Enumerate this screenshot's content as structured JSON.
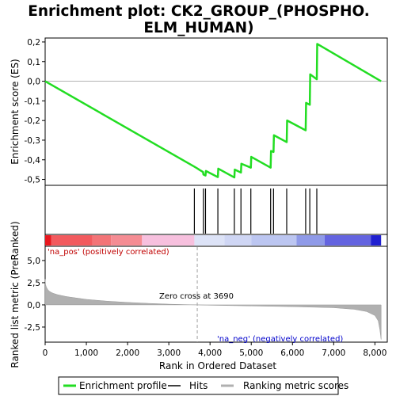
{
  "chart_data": {
    "type": "line",
    "title_lines": [
      "Enrichment plot: CK2_GROUP_(PHOSPHO.",
      "ELM_HUMAN)"
    ],
    "top_ylabel": "Enrichment score (ES)",
    "bottom_ylabel": "Ranked list metric (PreRanked)",
    "xlabel": "Rank in Ordered Dataset",
    "x_ticks": [
      "0",
      "1,000",
      "2,000",
      "3,000",
      "4,000",
      "5,000",
      "6,000",
      "7,000",
      "8,000"
    ],
    "x_tick_values": [
      0,
      1000,
      2000,
      3000,
      4000,
      5000,
      6000,
      7000,
      8000
    ],
    "xlim": [
      0,
      8300
    ],
    "es_yticks": [
      "0,2",
      "0,1",
      "0,0",
      "-0,1",
      "-0,2",
      "-0,3",
      "-0,4",
      "-0,5"
    ],
    "es_ytick_values": [
      0.2,
      0.1,
      0.0,
      -0.1,
      -0.2,
      -0.3,
      -0.4,
      -0.5
    ],
    "es_ylim": [
      -0.53,
      0.22
    ],
    "metric_yticks": [
      "5,0",
      "2,5",
      "0,0",
      "-2,5"
    ],
    "metric_ytick_values": [
      5.0,
      2.5,
      0.0,
      -2.5
    ],
    "metric_ylim": [
      -4.2,
      6.6
    ],
    "enrichment_profile": {
      "x": [
        0,
        3620,
        3700,
        3750,
        3830,
        3840,
        3890,
        3900,
        4190,
        4200,
        4590,
        4600,
        4750,
        4760,
        4990,
        5000,
        5470,
        5480,
        5540,
        5550,
        5860,
        5870,
        6320,
        6330,
        6420,
        6430,
        6590,
        6600,
        8150
      ],
      "y": [
        0.0,
        -0.435,
        -0.445,
        -0.452,
        -0.462,
        -0.475,
        -0.48,
        -0.457,
        -0.488,
        -0.445,
        -0.49,
        -0.45,
        -0.465,
        -0.42,
        -0.44,
        -0.385,
        -0.44,
        -0.355,
        -0.36,
        -0.275,
        -0.31,
        -0.2,
        -0.25,
        -0.11,
        -0.12,
        0.035,
        0.01,
        0.19,
        0.0
      ]
    },
    "hits": [
      3620,
      3840,
      3890,
      4190,
      4590,
      4750,
      4990,
      5470,
      5540,
      5860,
      6320,
      6420,
      6590
    ],
    "zero_cross_rank": 3690,
    "zero_cross_text": "Zero cross at 3690",
    "pos_label": "'na_pos' (positively correlated)",
    "neg_label": "'na_neg' (negatively correlated)",
    "ranking_metric": {
      "x": [
        0,
        10,
        30,
        60,
        100,
        150,
        200,
        300,
        400,
        500,
        600,
        800,
        1000,
        1500,
        2000,
        2500,
        3000,
        3400,
        3690,
        4000,
        5000,
        6000,
        7000,
        7500,
        7800,
        8000,
        8080,
        8120,
        8150
      ],
      "y": [
        2.9,
        2.3,
        2.0,
        1.75,
        1.55,
        1.4,
        1.3,
        1.15,
        1.05,
        0.95,
        0.88,
        0.75,
        0.62,
        0.42,
        0.28,
        0.17,
        0.08,
        0.03,
        0.0,
        -0.04,
        -0.12,
        -0.2,
        -0.32,
        -0.5,
        -0.75,
        -1.2,
        -1.8,
        -2.8,
        -3.9
      ]
    },
    "heatmap_segments": [
      {
        "x0": 0,
        "x1": 150,
        "color": "#e8171e"
      },
      {
        "x0": 150,
        "x1": 1150,
        "color": "#f25a5e"
      },
      {
        "x0": 1150,
        "x1": 1600,
        "color": "#f37477"
      },
      {
        "x0": 1600,
        "x1": 2350,
        "color": "#f58c93"
      },
      {
        "x0": 2350,
        "x1": 3620,
        "color": "#f7c0de"
      },
      {
        "x0": 3620,
        "x1": 4350,
        "color": "#dde3f7"
      },
      {
        "x0": 4350,
        "x1": 5000,
        "color": "#cfd6f4"
      },
      {
        "x0": 5000,
        "x1": 6100,
        "color": "#bcc6f1"
      },
      {
        "x0": 6100,
        "x1": 6780,
        "color": "#8f9ae8"
      },
      {
        "x0": 6780,
        "x1": 7900,
        "color": "#6464e0"
      },
      {
        "x0": 7900,
        "x1": 8150,
        "color": "#2020d0"
      }
    ],
    "legend": [
      "Enrichment profile",
      "Hits",
      "Ranking metric scores"
    ],
    "colors": {
      "profile": "#22dd22",
      "hits": "#000000",
      "metric": "#b0b0b0",
      "pos_text": "#c00000",
      "neg_text": "#0000cc",
      "zero_line": "#a0a0a0"
    }
  }
}
